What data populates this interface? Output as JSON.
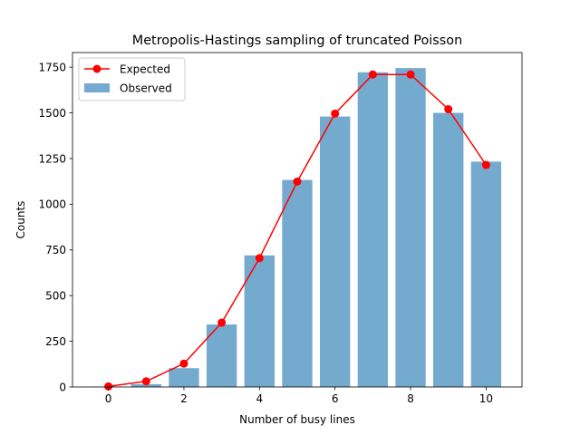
{
  "chart_data": {
    "type": "bar",
    "title": "Metropolis-Hastings sampling of truncated Poisson",
    "xlabel": "Number of busy lines",
    "ylabel": "Counts",
    "xlim": [
      -0.95,
      10.95
    ],
    "ylim": [
      0,
      1830
    ],
    "xticks": [
      0,
      2,
      4,
      6,
      8,
      10
    ],
    "yticks": [
      0,
      250,
      500,
      750,
      1000,
      1250,
      1500,
      1750
    ],
    "legend_position": "top-left",
    "series": [
      {
        "name": "Observed",
        "type": "bar",
        "color": "#74aace",
        "x": [
          0,
          1,
          2,
          3,
          4,
          5,
          6,
          7,
          8,
          9,
          10
        ],
        "values": [
          2,
          15,
          103,
          342,
          720,
          1133,
          1480,
          1722,
          1745,
          1500,
          1233
        ]
      },
      {
        "name": "Expected",
        "type": "line",
        "color": "#ff0000",
        "x": [
          0,
          1,
          2,
          3,
          4,
          5,
          6,
          7,
          8,
          9,
          10
        ],
        "values": [
          3,
          31,
          128,
          352,
          705,
          1124,
          1496,
          1710,
          1710,
          1520,
          1215
        ]
      }
    ]
  }
}
